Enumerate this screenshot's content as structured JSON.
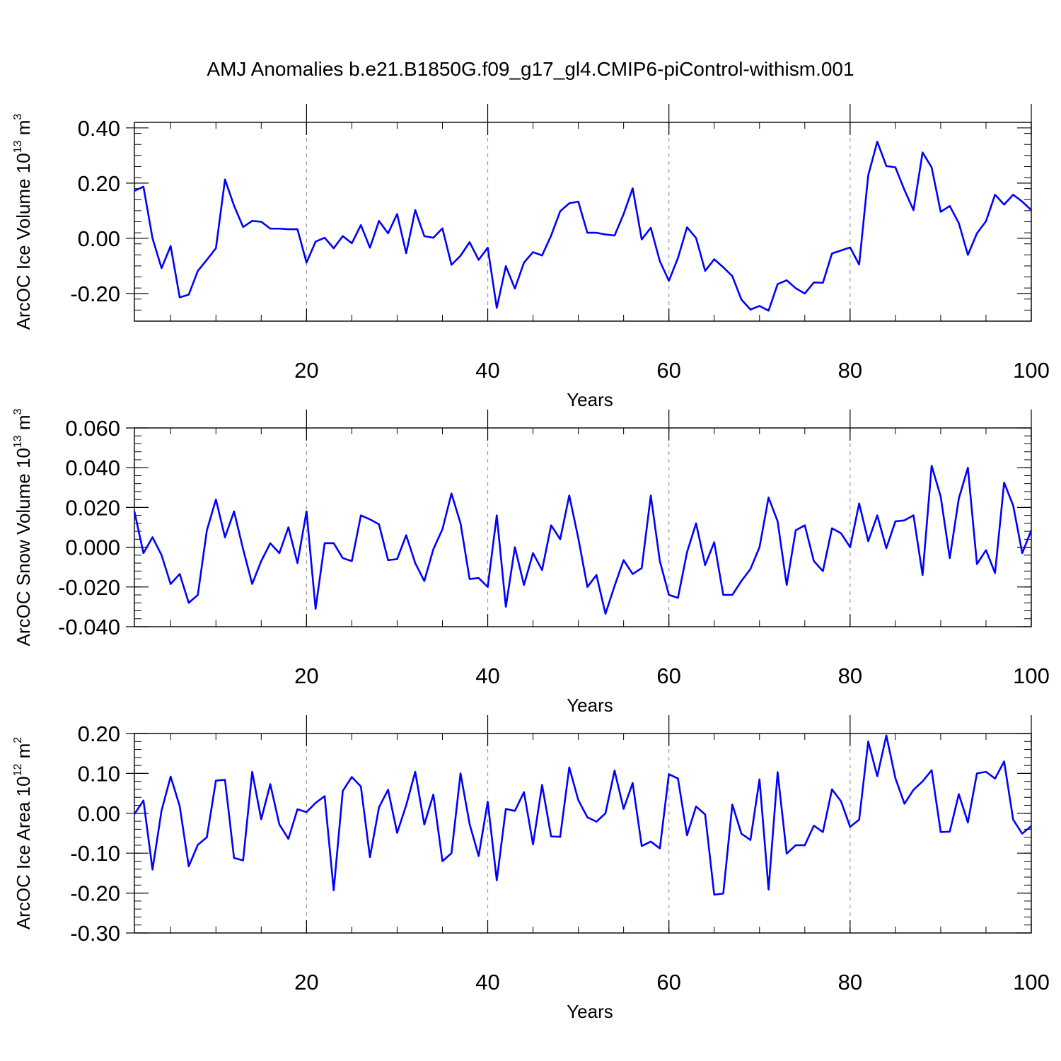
{
  "title": "AMJ Anomalies b.e21.B1850G.f09_g17_gl4.CMIP6-piControl-withism.001",
  "chart_data": [
    {
      "type": "line",
      "ylabel": {
        "base": "ArcOC Ice Volume 10",
        "exp": "13",
        "unit_base": " m",
        "unit_exp": "3"
      },
      "xlabel": "Years",
      "xlim": [
        1,
        100
      ],
      "ylim": [
        -0.3,
        0.42
      ],
      "xticks": [
        20,
        40,
        60,
        80,
        100
      ],
      "yticks": [
        -0.2,
        0.0,
        0.2,
        0.4
      ],
      "ytick_labels": [
        "-0.20",
        "0.00",
        "0.20",
        "0.40"
      ],
      "ytick_minor_step": 0.04,
      "grid": "vertical dashed at major x ticks",
      "color": "#0000ff",
      "x_start": 1,
      "values": [
        0.172,
        0.187,
        0.0,
        -0.108,
        -0.028,
        -0.214,
        -0.204,
        -0.118,
        -0.078,
        -0.036,
        0.213,
        0.118,
        0.041,
        0.063,
        0.06,
        0.035,
        0.035,
        0.033,
        0.033,
        -0.088,
        -0.012,
        0.002,
        -0.036,
        0.008,
        -0.018,
        0.048,
        -0.034,
        0.063,
        0.018,
        0.088,
        -0.054,
        0.102,
        0.008,
        0.002,
        0.036,
        -0.096,
        -0.063,
        -0.014,
        -0.078,
        -0.034,
        -0.252,
        -0.101,
        -0.182,
        -0.088,
        -0.05,
        -0.062,
        0.01,
        0.098,
        0.127,
        0.133,
        0.02,
        0.02,
        0.014,
        0.01,
        0.088,
        0.181,
        -0.004,
        0.038,
        -0.083,
        -0.154,
        -0.071,
        0.04,
        0.001,
        -0.118,
        -0.076,
        -0.105,
        -0.137,
        -0.222,
        -0.258,
        -0.245,
        -0.262,
        -0.166,
        -0.152,
        -0.181,
        -0.2,
        -0.16,
        -0.161,
        -0.055,
        -0.044,
        -0.033,
        -0.095,
        0.228,
        0.35,
        0.262,
        0.257,
        0.175,
        0.102,
        0.311,
        0.257,
        0.096,
        0.117,
        0.055,
        -0.06,
        0.018,
        0.062,
        0.158,
        0.122,
        0.158,
        0.133,
        0.102
      ]
    },
    {
      "type": "line",
      "ylabel": {
        "base": "ArcOC Snow Volume 10",
        "exp": "13",
        "unit_base": " m",
        "unit_exp": "3"
      },
      "xlabel": "Years",
      "xlim": [
        1,
        100
      ],
      "ylim": [
        -0.04,
        0.06
      ],
      "xticks": [
        20,
        40,
        60,
        80,
        100
      ],
      "yticks": [
        -0.04,
        -0.02,
        0.0,
        0.02,
        0.04,
        0.06
      ],
      "ytick_labels": [
        "-0.040",
        "-0.020",
        "0.000",
        "0.020",
        "0.040",
        "0.060"
      ],
      "ytick_minor_step": 0.004,
      "grid": "vertical dashed at major x ticks",
      "color": "#0000ff",
      "x_start": 1,
      "values": [
        0.018,
        -0.003,
        0.005,
        -0.004,
        -0.0185,
        -0.0135,
        -0.028,
        -0.024,
        0.0085,
        0.024,
        0.005,
        0.018,
        -0.001,
        -0.0185,
        -0.007,
        0.002,
        -0.003,
        0.01,
        -0.008,
        0.018,
        -0.031,
        0.002,
        0.002,
        -0.0055,
        -0.007,
        0.016,
        0.014,
        0.0115,
        -0.0065,
        -0.006,
        0.006,
        -0.008,
        -0.017,
        -0.001,
        0.009,
        0.027,
        0.012,
        -0.016,
        -0.0155,
        -0.02,
        0.016,
        -0.03,
        0.0,
        -0.019,
        -0.003,
        -0.0115,
        0.011,
        0.004,
        0.026,
        0.0045,
        -0.02,
        -0.014,
        -0.0335,
        -0.0195,
        -0.0065,
        -0.0135,
        -0.0105,
        0.026,
        -0.007,
        -0.024,
        -0.0255,
        -0.0025,
        0.012,
        -0.009,
        0.0025,
        -0.024,
        -0.024,
        -0.017,
        -0.011,
        0.0,
        0.025,
        0.013,
        -0.019,
        0.0085,
        0.011,
        -0.007,
        -0.012,
        0.0095,
        0.007,
        0.0,
        0.022,
        0.003,
        0.016,
        -0.0005,
        0.013,
        0.0135,
        0.016,
        -0.014,
        0.041,
        0.0255,
        -0.0055,
        0.0245,
        0.04,
        -0.0085,
        -0.0015,
        -0.013,
        0.0325,
        0.021,
        -0.003,
        0.0085
      ]
    },
    {
      "type": "line",
      "ylabel": {
        "base": "ArcOC Ice Area 10",
        "exp": "12",
        "unit_base": " m",
        "unit_exp": "2"
      },
      "xlabel": "Years",
      "xlim": [
        1,
        100
      ],
      "ylim": [
        -0.3,
        0.2
      ],
      "xticks": [
        20,
        40,
        60,
        80,
        100
      ],
      "yticks": [
        -0.3,
        -0.2,
        -0.1,
        0.0,
        0.1,
        0.2
      ],
      "ytick_labels": [
        "-0.30",
        "-0.20",
        "-0.10",
        "0.00",
        "0.10",
        "0.20"
      ],
      "ytick_minor_step": 0.02,
      "grid": "vertical dashed at major x ticks",
      "color": "#0000ff",
      "x_start": 1,
      "values": [
        -0.002,
        0.032,
        -0.141,
        0.007,
        0.092,
        0.018,
        -0.133,
        -0.079,
        -0.06,
        0.082,
        0.084,
        -0.112,
        -0.118,
        0.104,
        -0.015,
        0.073,
        -0.028,
        -0.064,
        0.01,
        0.003,
        0.026,
        0.043,
        -0.193,
        0.056,
        0.091,
        0.067,
        -0.11,
        0.015,
        0.059,
        -0.049,
        0.02,
        0.104,
        -0.028,
        0.047,
        -0.12,
        -0.1,
        0.1,
        -0.027,
        -0.107,
        0.029,
        -0.168,
        0.011,
        0.006,
        0.053,
        -0.078,
        0.071,
        -0.058,
        -0.059,
        0.115,
        0.033,
        -0.01,
        -0.021,
        0.0,
        0.107,
        0.011,
        0.076,
        -0.082,
        -0.071,
        -0.088,
        0.098,
        0.087,
        -0.055,
        0.017,
        -0.003,
        -0.204,
        -0.201,
        0.022,
        -0.051,
        -0.067,
        0.085,
        -0.191,
        0.103,
        -0.101,
        -0.08,
        -0.08,
        -0.031,
        -0.047,
        0.06,
        0.03,
        -0.034,
        -0.016,
        0.18,
        0.093,
        0.195,
        0.088,
        0.024,
        0.059,
        0.08,
        0.108,
        -0.047,
        -0.046,
        0.048,
        -0.023,
        0.1,
        0.104,
        0.087,
        0.13,
        -0.016,
        -0.051,
        -0.032
      ]
    }
  ]
}
